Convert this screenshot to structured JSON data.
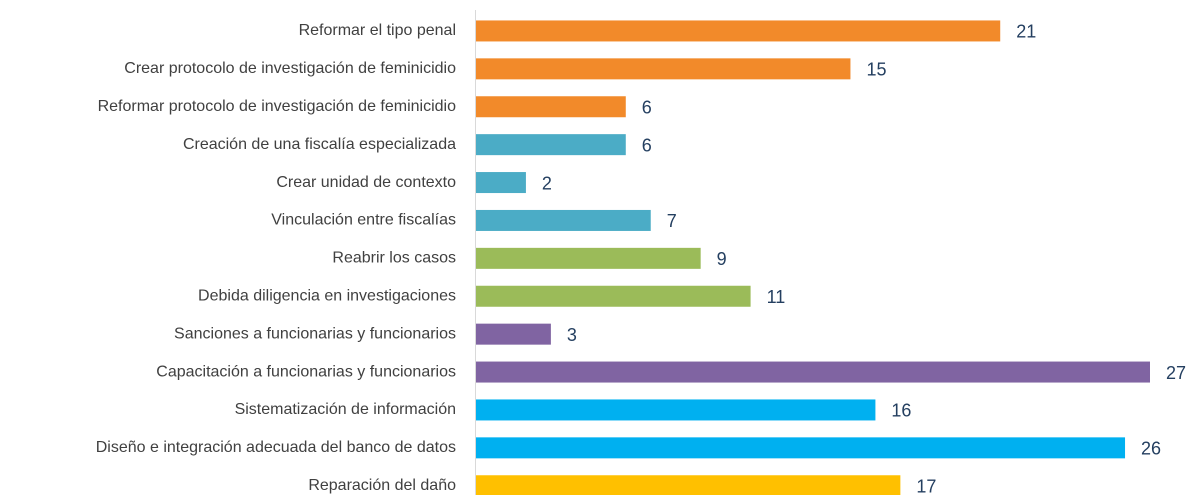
{
  "chart_data": {
    "type": "barh",
    "categories": [
      "Reformar el tipo penal",
      "Crear protocolo de investigación de feminicidio",
      "Reformar protocolo de investigación de feminicidio",
      "Creación de una fiscalía especializada",
      "Crear unidad de contexto",
      "Vinculación entre fiscalías",
      "Reabrir los casos",
      "Debida diligencia en investigaciones",
      "Sanciones a funcionarias y funcionarios",
      "Capacitación a funcionarias y funcionarios",
      "Sistematización de información",
      "Diseño e integración adecuada del banco de datos",
      "Reparación del daño"
    ],
    "values": [
      21,
      15,
      6,
      6,
      2,
      7,
      9,
      11,
      3,
      27,
      16,
      26,
      17
    ],
    "colors": [
      "#f28a2a",
      "#f28a2a",
      "#f28a2a",
      "#4bacc6",
      "#4bacc6",
      "#4bacc6",
      "#9bbb59",
      "#9bbb59",
      "#8064a2",
      "#8064a2",
      "#00b0f0",
      "#00b0f0",
      "#ffc000"
    ],
    "xlim": [
      0,
      27
    ]
  }
}
